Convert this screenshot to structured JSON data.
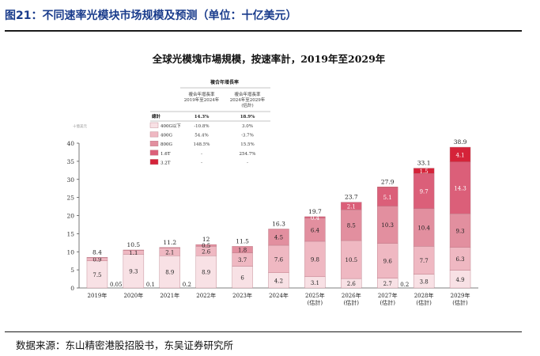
{
  "figure_label": "图21：不同速率光模块市场规模及预测（单位：十亿美元）",
  "source": "数据来源：东山精密港股招股书，东吴证券研究所",
  "colors": {
    "title_blue": "#1a3c8c",
    "400G以下": "#f8e1e5",
    "400G": "#efb8c2",
    "800G": "#e28f9f",
    "1.6T": "#db5f79",
    "3.2T": "#d52339"
  },
  "chart_data": {
    "type": "bar",
    "stacked": true,
    "title": "全球光模塊市場規模，按速率計，2019年至2029年",
    "y_unit_label": "十億美元",
    "ylim": [
      0,
      40
    ],
    "yticks": [
      0,
      5,
      10,
      15,
      20,
      25,
      30,
      35,
      40
    ],
    "grid": false,
    "categories": [
      [
        "2019年"
      ],
      [
        "2020年"
      ],
      [
        "2021年"
      ],
      [
        "2022年"
      ],
      [
        "2023年"
      ],
      [
        "2024年"
      ],
      [
        "2025年",
        "(估計)"
      ],
      [
        "2026年",
        "(估計)"
      ],
      [
        "2027年",
        "(估計)"
      ],
      [
        "2028年",
        "(估計)"
      ],
      [
        "2029年",
        "(估計)"
      ]
    ],
    "series": [
      {
        "name": "400G以下",
        "values": [
          7.5,
          9.3,
          8.9,
          8.9,
          6.0,
          4.2,
          3.1,
          2.6,
          2.7,
          3.8,
          4.9
        ]
      },
      {
        "name": "400G",
        "values": [
          0.9,
          1.1,
          2.1,
          2.6,
          3.7,
          7.6,
          9.8,
          10.5,
          9.6,
          7.7,
          6.3
        ]
      },
      {
        "name": "800G",
        "values": [
          0.05,
          0.1,
          0.2,
          0.5,
          1.8,
          4.5,
          6.4,
          8.5,
          10.3,
          10.4,
          9.3
        ]
      },
      {
        "name": "1.6T",
        "values": [
          null,
          null,
          null,
          null,
          null,
          null,
          0.4,
          2.1,
          5.1,
          9.7,
          14.3
        ]
      },
      {
        "name": "3.2T",
        "values": [
          null,
          null,
          null,
          null,
          null,
          null,
          null,
          null,
          0.2,
          1.5,
          4.1
        ]
      }
    ],
    "totals": [
      8.4,
      10.5,
      11.2,
      12.0,
      11.5,
      16.3,
      19.7,
      23.7,
      27.9,
      33.1,
      38.9
    ],
    "cagr_table": {
      "header": "複合年增長率",
      "col1": "複合年增長率\n2019年至2024年",
      "col2": "複合年增長率\n2024年至2029年\n(估計)",
      "total_label": "總計",
      "total_col1": "14.3%",
      "total_col2": "18.9%",
      "rows": [
        {
          "label": "400G以下",
          "col1": "-10.8%",
          "col2": "3.0%"
        },
        {
          "label": "400G",
          "col1": "54.4%",
          "col2": "-3.7%"
        },
        {
          "label": "800G",
          "col1": "148.5%",
          "col2": "15.5%"
        },
        {
          "label": "1.6T",
          "col1": "-",
          "col2": "254.7%"
        },
        {
          "label": "3.2T",
          "col1": "-",
          "col2": "-"
        }
      ]
    }
  }
}
